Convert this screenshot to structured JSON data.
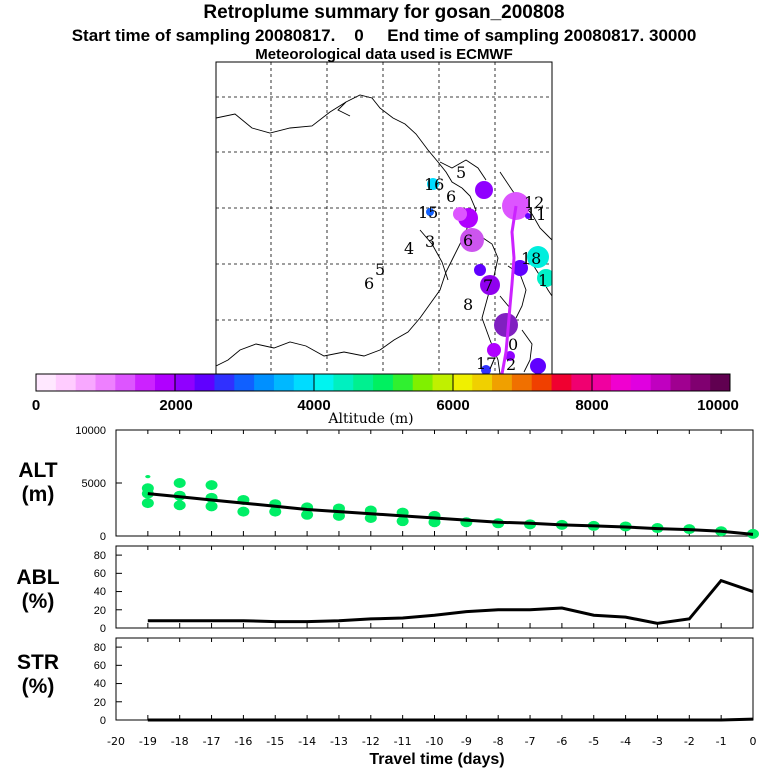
{
  "header": {
    "title": "Retroplume summary for gosan_200808",
    "subtitle": "Start time of sampling 20080817.    0     End time of sampling 20080817. 30000",
    "met_line": "Meteorological data used is ECMWF"
  },
  "colorbar": {
    "label": "Altitude (m)",
    "ticks": [
      "0",
      "2000",
      "4000",
      "6000",
      "8000",
      "10000"
    ],
    "colors": [
      "#ffe8ff",
      "#ffccff",
      "#f8a8ff",
      "#ee80ff",
      "#dd55ff",
      "#cc22ff",
      "#b000ff",
      "#9000ff",
      "#6000ff",
      "#3030ff",
      "#1060ff",
      "#0090ff",
      "#00b8ff",
      "#00dcff",
      "#00f4f0",
      "#00f0c0",
      "#00f090",
      "#00f060",
      "#30f030",
      "#80f000",
      "#c0f000",
      "#f0f000",
      "#f0d000",
      "#f0a000",
      "#f07000",
      "#f04000",
      "#f00030",
      "#f00070",
      "#f000a0",
      "#f000d0",
      "#e000e0",
      "#c000c0",
      "#a00090",
      "#800070",
      "#600050"
    ]
  },
  "map": {
    "labels": [
      {
        "t": "16",
        "c": "#000"
      },
      {
        "t": "5",
        "c": "#000"
      },
      {
        "t": "6",
        "c": "#000"
      },
      {
        "t": "15",
        "c": "#000"
      },
      {
        "t": "4",
        "c": "#000"
      },
      {
        "t": "3",
        "c": "#000"
      },
      {
        "t": "5",
        "c": "#000"
      },
      {
        "t": "6",
        "c": "#000"
      },
      {
        "t": "18",
        "c": "#000"
      },
      {
        "t": "1",
        "c": "#000"
      },
      {
        "t": "12",
        "c": "#000"
      },
      {
        "t": "8",
        "c": "#000"
      },
      {
        "t": "7",
        "c": "#000"
      },
      {
        "t": "0",
        "c": "#000"
      },
      {
        "t": "17",
        "c": "#000"
      },
      {
        "t": "2",
        "c": "#000"
      },
      {
        "t": "11",
        "c": "#000"
      },
      {
        "t": "6",
        "c": "#000"
      }
    ]
  },
  "panels": {
    "alt": {
      "label1": "ALT",
      "label2": "(m)",
      "yticks": [
        "10000",
        "5000",
        "0"
      ]
    },
    "abl": {
      "label1": "ABL",
      "label2": "(%)",
      "yticks": [
        "80",
        "60",
        "40",
        "20",
        "0"
      ]
    },
    "str": {
      "label1": "STR",
      "label2": "(%)",
      "yticks": [
        "80",
        "60",
        "40",
        "20",
        "0"
      ]
    }
  },
  "xaxis": {
    "title": "Travel time (days)"
  },
  "chart_data": [
    {
      "type": "line",
      "title": "ALT (m)",
      "xlabel": "Travel time (days)",
      "ylabel": "ALT (m)",
      "xlim": [
        -20,
        0
      ],
      "ylim": [
        0,
        10000
      ],
      "x": [
        -19,
        -18,
        -17,
        -16,
        -15,
        -14,
        -13,
        -12,
        -11,
        -10,
        -9,
        -8,
        -7,
        -6,
        -5,
        -4,
        -3,
        -2,
        -1,
        0
      ],
      "series": [
        {
          "name": "mean altitude",
          "values": [
            4000,
            3700,
            3400,
            3100,
            2800,
            2500,
            2300,
            2100,
            1900,
            1700,
            1500,
            1300,
            1200,
            1050,
            950,
            850,
            700,
            600,
            450,
            150
          ]
        }
      ],
      "scatter_series": [
        {
          "name": "particle altitudes",
          "x": [
            -19,
            -19,
            -19,
            -19,
            -18,
            -18,
            -18,
            -17,
            -17,
            -17,
            -16,
            -16,
            -15,
            -15,
            -14,
            -14,
            -13,
            -13,
            -12,
            -12,
            -11,
            -11,
            -10,
            -10,
            -9,
            -8,
            -7,
            -6,
            -5,
            -4,
            -3,
            -2,
            -1,
            0
          ],
          "y": [
            5600,
            4500,
            4000,
            3100,
            5000,
            3800,
            2900,
            4800,
            3600,
            2800,
            3400,
            2300,
            3000,
            2300,
            2700,
            2000,
            2600,
            1900,
            2400,
            1700,
            2200,
            1400,
            1900,
            1300,
            1300,
            1200,
            1100,
            1050,
            950,
            900,
            750,
            650,
            450,
            200
          ]
        }
      ]
    },
    {
      "type": "line",
      "title": "ABL (%)",
      "xlabel": "Travel time (days)",
      "ylabel": "ABL (%)",
      "xlim": [
        -20,
        0
      ],
      "ylim": [
        0,
        90
      ],
      "x": [
        -19,
        -18,
        -17,
        -16,
        -15,
        -14,
        -13,
        -12,
        -11,
        -10,
        -9,
        -8,
        -7,
        -6,
        -5,
        -4,
        -3,
        -2,
        -1,
        0
      ],
      "series": [
        {
          "name": "ABL",
          "values": [
            8,
            8,
            8,
            8,
            7,
            7,
            8,
            10,
            11,
            14,
            18,
            20,
            20,
            22,
            14,
            12,
            5,
            10,
            52,
            40
          ]
        }
      ]
    },
    {
      "type": "line",
      "title": "STR (%)",
      "xlabel": "Travel time (days)",
      "ylabel": "STR (%)",
      "xlim": [
        -20,
        0
      ],
      "ylim": [
        0,
        90
      ],
      "x": [
        -19,
        -18,
        -17,
        -16,
        -15,
        -14,
        -13,
        -12,
        -11,
        -10,
        -9,
        -8,
        -7,
        -6,
        -5,
        -4,
        -3,
        -2,
        -1,
        0
      ],
      "xticks": [
        "-20",
        "-19",
        "-18",
        "-17",
        "-16",
        "-15",
        "-14",
        "-13",
        "-12",
        "-11",
        "-10",
        "-9",
        "-8",
        "-7",
        "-6",
        "-5",
        "-4",
        "-3",
        "-2",
        "-1",
        "0"
      ],
      "series": [
        {
          "name": "STR",
          "values": [
            0,
            0,
            0,
            0,
            0,
            0,
            0,
            0,
            0,
            0,
            0,
            0,
            0,
            0,
            0,
            0,
            0,
            0,
            0,
            1
          ]
        }
      ]
    }
  ]
}
